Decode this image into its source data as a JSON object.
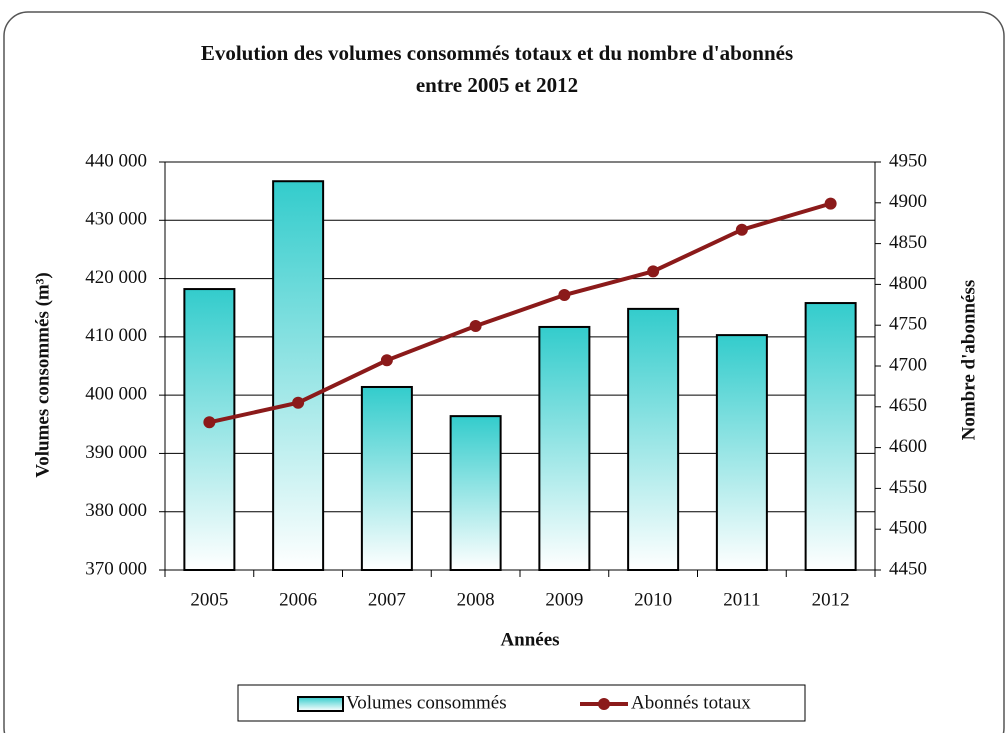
{
  "chart_data": {
    "type": "bar_line",
    "title": [
      "Evolution des volumes consommés totaux et du nombre d'abonnés",
      "entre 2005 et 2012"
    ],
    "x_label": "Années",
    "y_label": "Volumes consommés (m³)",
    "y2_label": "Nombre d'abonnéss",
    "categories": [
      "2005",
      "2006",
      "2007",
      "2008",
      "2009",
      "2010",
      "2011",
      "2012"
    ],
    "series": [
      {
        "name": "Volumes consommés",
        "type": "bar",
        "color": "#33cccc",
        "values": [
          418200,
          436700,
          401400,
          396400,
          411700,
          414800,
          410300,
          415800
        ]
      },
      {
        "name": "Abonnés totaux",
        "type": "line",
        "axis": "y2",
        "color": "#8b1a1a",
        "values": [
          4631,
          4655,
          4707,
          4749,
          4787,
          4816,
          4867,
          4899
        ]
      }
    ],
    "ylim": [
      370000,
      440000
    ],
    "yticks": [
      {
        "value": 370000,
        "label": "370 000"
      },
      {
        "value": 380000,
        "label": "380 000"
      },
      {
        "value": 390000,
        "label": "390 000"
      },
      {
        "value": 400000,
        "label": "400 000"
      },
      {
        "value": 410000,
        "label": "410 000"
      },
      {
        "value": 420000,
        "label": "420 000"
      },
      {
        "value": 430000,
        "label": "430 000"
      },
      {
        "value": 440000,
        "label": "440 000"
      }
    ],
    "y2lim": [
      4450,
      4950
    ],
    "y2ticks": [
      4450,
      4500,
      4550,
      4600,
      4650,
      4700,
      4750,
      4800,
      4850,
      4900,
      4950
    ],
    "grid": true,
    "legend": "bottom"
  }
}
